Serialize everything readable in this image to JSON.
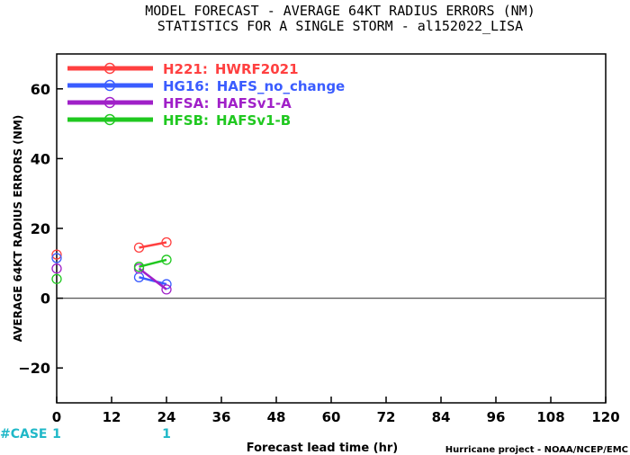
{
  "chart_data": {
    "type": "line",
    "title": "MODEL FORECAST - AVERAGE 64KT RADIUS ERRORS (NM)",
    "subtitle": "STATISTICS FOR A SINGLE STORM - al152022_LISA",
    "xlabel": "Forecast lead time (hr)",
    "ylabel": "AVERAGE 64KT RADIUS ERRORS (NM)",
    "credit": "Hurricane project - NOAA/NCEP/EMC",
    "xlim": [
      0,
      120
    ],
    "ylim": [
      -30,
      70
    ],
    "x_ticks": [
      0,
      12,
      24,
      36,
      48,
      60,
      72,
      84,
      96,
      108,
      120
    ],
    "y_ticks": [
      -20,
      0,
      20,
      40,
      60
    ],
    "grid": false,
    "zero_line": true,
    "legend_position": "top-left",
    "case_label": "#CASE",
    "cases": [
      {
        "x": 0,
        "count": "1"
      },
      {
        "x": 24,
        "count": "1"
      }
    ],
    "series": [
      {
        "code": "H221",
        "name": "HWRF2021",
        "color": "#ff4040",
        "segments": [
          [
            {
              "x": 0,
              "y": 12.5
            }
          ],
          [
            {
              "x": 18,
              "y": 14.5
            },
            {
              "x": 24,
              "y": 16
            }
          ]
        ]
      },
      {
        "code": "HG16",
        "name": "HAFS_no_change",
        "color": "#3a5cff",
        "segments": [
          [
            {
              "x": 0,
              "y": 11.5
            }
          ],
          [
            {
              "x": 18,
              "y": 6
            },
            {
              "x": 24,
              "y": 4
            }
          ]
        ]
      },
      {
        "code": "HFSA",
        "name": "HAFSv1-A",
        "color": "#a020c8",
        "segments": [
          [
            {
              "x": 0,
              "y": 8.5
            }
          ],
          [
            {
              "x": 18,
              "y": 8.5
            },
            {
              "x": 24,
              "y": 2.5
            }
          ]
        ]
      },
      {
        "code": "HFSB",
        "name": "HAFSv1-B",
        "color": "#20c820",
        "segments": [
          [
            {
              "x": 0,
              "y": 5.5
            }
          ],
          [
            {
              "x": 18,
              "y": 9
            },
            {
              "x": 24,
              "y": 11
            }
          ]
        ]
      }
    ]
  }
}
